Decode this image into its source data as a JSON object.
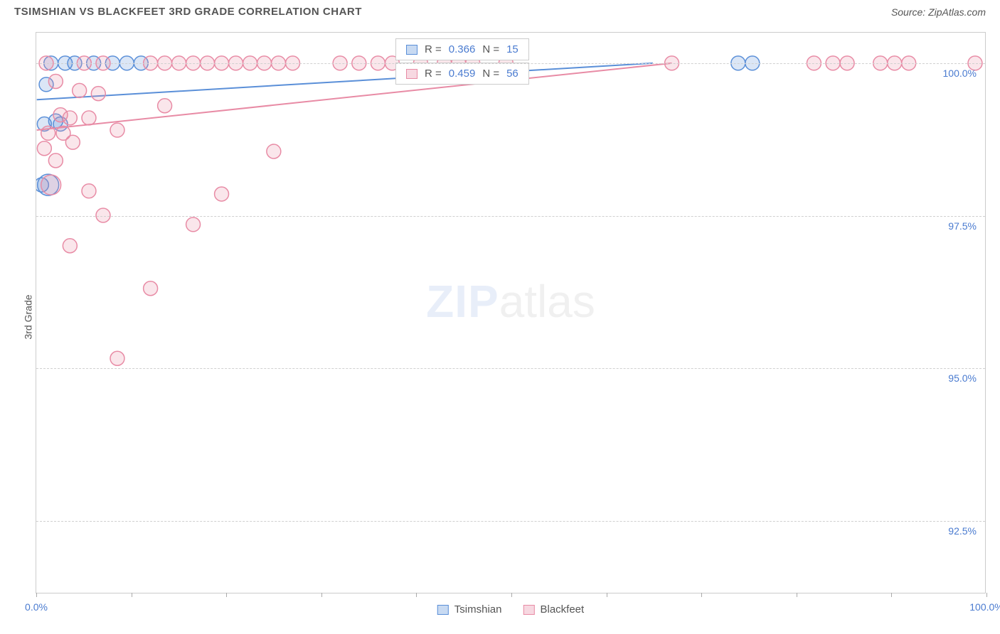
{
  "header": {
    "title": "TSIMSHIAN VS BLACKFEET 3RD GRADE CORRELATION CHART",
    "source": "Source: ZipAtlas.com"
  },
  "chart": {
    "type": "scatter",
    "y_axis_label": "3rd Grade",
    "background_color": "#ffffff",
    "grid_color": "#d0d0d0",
    "border_color": "#cccccc",
    "axis_label_color": "#4a7bd0",
    "title_color": "#555555",
    "xlim": [
      0,
      100
    ],
    "ylim": [
      91.3,
      100.5
    ],
    "x_tick_positions": [
      0,
      10,
      20,
      30,
      40,
      50,
      60,
      70,
      80,
      90,
      100
    ],
    "x_tick_labels": {
      "0": "0.0%",
      "100": "100.0%"
    },
    "y_ticks": [
      {
        "value": 92.5,
        "label": "92.5%"
      },
      {
        "value": 95.0,
        "label": "95.0%"
      },
      {
        "value": 97.5,
        "label": "97.5%"
      },
      {
        "value": 100.0,
        "label": "100.0%"
      }
    ],
    "marker_radius": 10,
    "marker_stroke_width": 1.5,
    "marker_fill_opacity": 0.22,
    "line_width": 2,
    "watermark": {
      "zip": "ZIP",
      "atlas": "atlas"
    },
    "series": [
      {
        "name": "Tsimshian",
        "color": "#5a8fd8",
        "fill": "#5a8fd8",
        "R": "0.366",
        "N": "15",
        "trend": {
          "x1": 0,
          "y1": 99.4,
          "x2": 65,
          "y2": 100.0
        },
        "points": [
          {
            "x": 1.5,
            "y": 100.0
          },
          {
            "x": 3.0,
            "y": 100.0
          },
          {
            "x": 4.0,
            "y": 100.0
          },
          {
            "x": 6.0,
            "y": 100.0
          },
          {
            "x": 8.0,
            "y": 100.0
          },
          {
            "x": 9.5,
            "y": 100.0
          },
          {
            "x": 11.0,
            "y": 100.0
          },
          {
            "x": 74.0,
            "y": 100.0
          },
          {
            "x": 75.5,
            "y": 100.0
          },
          {
            "x": 1.0,
            "y": 99.65
          },
          {
            "x": 2.0,
            "y": 99.05
          },
          {
            "x": 0.8,
            "y": 99.0
          },
          {
            "x": 2.5,
            "y": 99.0
          },
          {
            "x": 1.2,
            "y": 98.0,
            "r": 15
          },
          {
            "x": 0.5,
            "y": 98.0
          }
        ]
      },
      {
        "name": "Blackfeet",
        "color": "#e88ba5",
        "fill": "#e88ba5",
        "R": "0.459",
        "N": "56",
        "trend": {
          "x1": 0,
          "y1": 98.9,
          "x2": 67,
          "y2": 100.0
        },
        "points": [
          {
            "x": 1.0,
            "y": 100.0
          },
          {
            "x": 5.0,
            "y": 100.0
          },
          {
            "x": 7.0,
            "y": 100.0
          },
          {
            "x": 12.0,
            "y": 100.0
          },
          {
            "x": 13.5,
            "y": 100.0
          },
          {
            "x": 15.0,
            "y": 100.0
          },
          {
            "x": 16.5,
            "y": 100.0
          },
          {
            "x": 18.0,
            "y": 100.0
          },
          {
            "x": 19.5,
            "y": 100.0
          },
          {
            "x": 21.0,
            "y": 100.0
          },
          {
            "x": 22.5,
            "y": 100.0
          },
          {
            "x": 24.0,
            "y": 100.0
          },
          {
            "x": 25.5,
            "y": 100.0
          },
          {
            "x": 27.0,
            "y": 100.0
          },
          {
            "x": 32.0,
            "y": 100.0
          },
          {
            "x": 34.0,
            "y": 100.0
          },
          {
            "x": 36.0,
            "y": 100.0
          },
          {
            "x": 37.5,
            "y": 100.0
          },
          {
            "x": 40.5,
            "y": 100.0
          },
          {
            "x": 43.0,
            "y": 100.0
          },
          {
            "x": 44.5,
            "y": 100.0
          },
          {
            "x": 46.0,
            "y": 100.0
          },
          {
            "x": 49.5,
            "y": 100.0
          },
          {
            "x": 67.0,
            "y": 100.0
          },
          {
            "x": 82.0,
            "y": 100.0
          },
          {
            "x": 84.0,
            "y": 100.0
          },
          {
            "x": 85.5,
            "y": 100.0
          },
          {
            "x": 89.0,
            "y": 100.0
          },
          {
            "x": 90.5,
            "y": 100.0
          },
          {
            "x": 92.0,
            "y": 100.0
          },
          {
            "x": 99.0,
            "y": 100.0
          },
          {
            "x": 2.0,
            "y": 99.7
          },
          {
            "x": 4.5,
            "y": 99.55
          },
          {
            "x": 6.5,
            "y": 99.5
          },
          {
            "x": 13.5,
            "y": 99.3
          },
          {
            "x": 2.5,
            "y": 99.15
          },
          {
            "x": 3.5,
            "y": 99.1
          },
          {
            "x": 5.5,
            "y": 99.1
          },
          {
            "x": 8.5,
            "y": 98.9
          },
          {
            "x": 1.2,
            "y": 98.85
          },
          {
            "x": 2.8,
            "y": 98.85
          },
          {
            "x": 3.8,
            "y": 98.7
          },
          {
            "x": 0.8,
            "y": 98.6
          },
          {
            "x": 2.0,
            "y": 98.4
          },
          {
            "x": 25.0,
            "y": 98.55
          },
          {
            "x": 1.5,
            "y": 98.0,
            "r": 14
          },
          {
            "x": 5.5,
            "y": 97.9
          },
          {
            "x": 19.5,
            "y": 97.85
          },
          {
            "x": 7.0,
            "y": 97.5
          },
          {
            "x": 16.5,
            "y": 97.35
          },
          {
            "x": 3.5,
            "y": 97.0
          },
          {
            "x": 12.0,
            "y": 96.3
          },
          {
            "x": 8.5,
            "y": 95.15
          }
        ]
      }
    ],
    "bottom_legend": [
      {
        "label": "Tsimshian",
        "color": "#5a8fd8"
      },
      {
        "label": "Blackfeet",
        "color": "#e88ba5"
      }
    ]
  }
}
